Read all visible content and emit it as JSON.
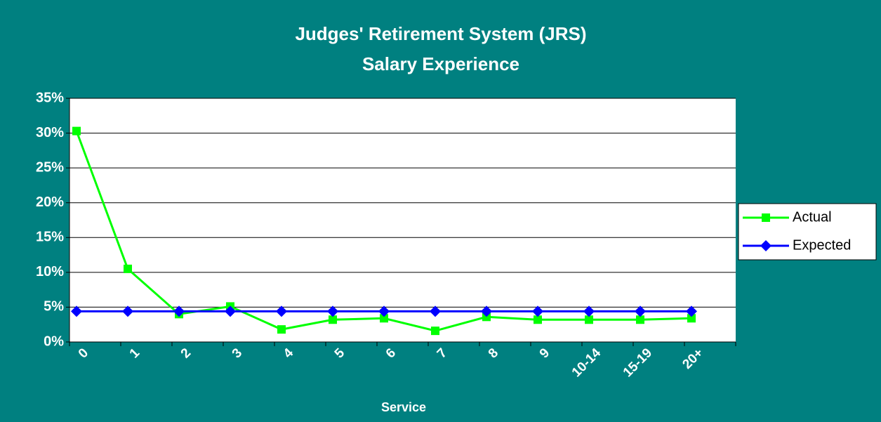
{
  "chart_data": {
    "type": "line",
    "title": "Judges' Retirement System (JRS)",
    "subtitle": "Salary Experience",
    "x_label": "Service",
    "categories": [
      "0",
      "1",
      "2",
      "3",
      "4",
      "5",
      "6",
      "7",
      "8",
      "9",
      "10-14",
      "15-19",
      "20+"
    ],
    "series": [
      {
        "name": "Actual",
        "color": "#00ff00",
        "marker": "square",
        "values": [
          30.3,
          10.5,
          4.0,
          5.1,
          1.8,
          3.2,
          3.4,
          1.6,
          3.6,
          3.2,
          3.2,
          3.2,
          3.4
        ]
      },
      {
        "name": "Expected",
        "color": "#0000ff",
        "marker": "diamond",
        "values": [
          4.4,
          4.4,
          4.4,
          4.4,
          4.4,
          4.4,
          4.4,
          4.4,
          4.4,
          4.4,
          4.4,
          4.4,
          4.4
        ]
      }
    ],
    "ylim": [
      0,
      35
    ],
    "yticks": [
      {
        "value": 0,
        "label": "0%"
      },
      {
        "value": 5,
        "label": "5%"
      },
      {
        "value": 10,
        "label": "10%"
      },
      {
        "value": 15,
        "label": "15%"
      },
      {
        "value": 20,
        "label": "20%"
      },
      {
        "value": 25,
        "label": "25%"
      },
      {
        "value": 30,
        "label": "30%"
      },
      {
        "value": 35,
        "label": "35%"
      }
    ],
    "grid": true,
    "legend": "right"
  }
}
